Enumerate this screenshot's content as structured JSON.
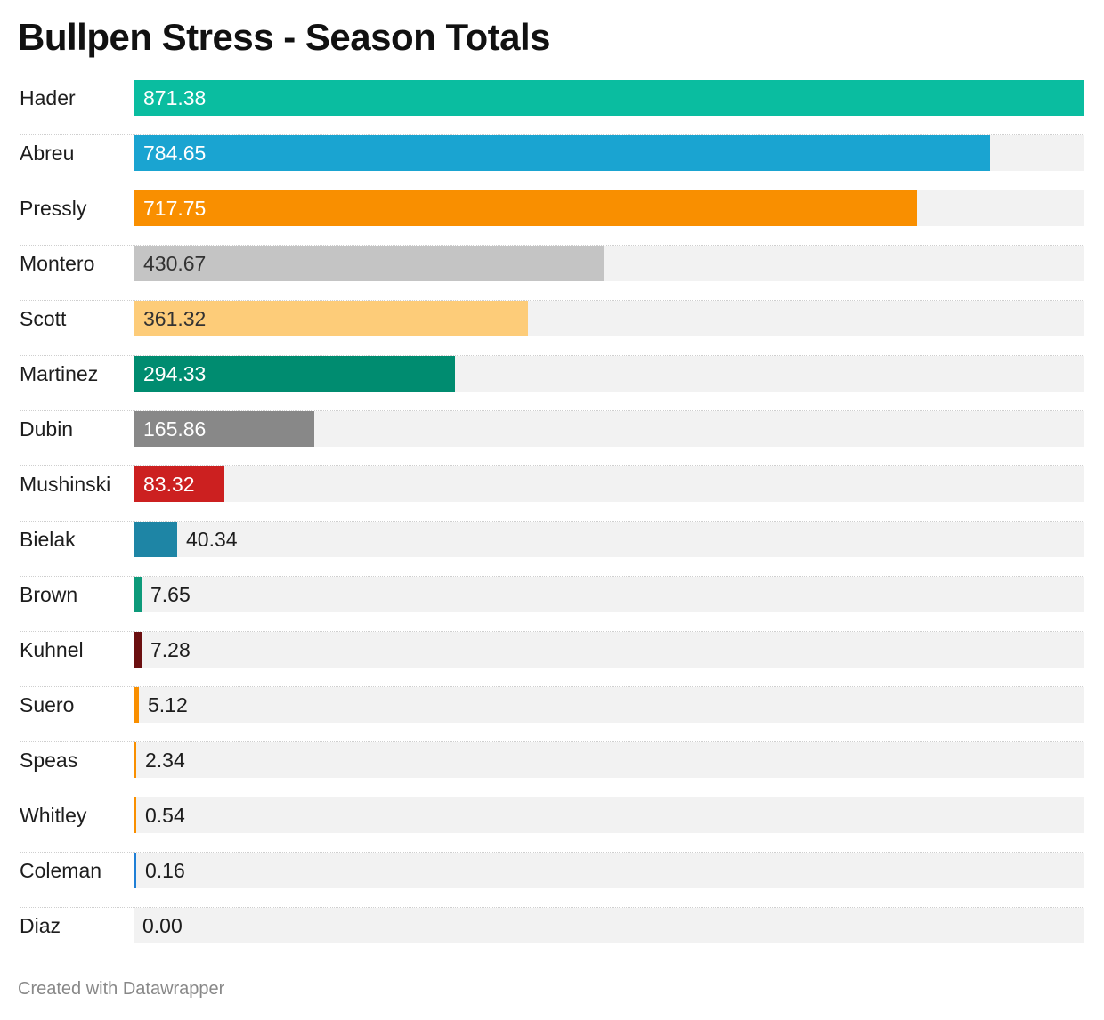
{
  "title": "Bullpen Stress - Season Totals",
  "footer": "Created with Datawrapper",
  "chart_data": {
    "type": "bar",
    "orientation": "horizontal",
    "title": "Bullpen Stress - Season Totals",
    "xlabel": "",
    "ylabel": "",
    "xlim": [
      0,
      871.38
    ],
    "grid": false,
    "legend": "none",
    "categories": [
      "Hader",
      "Abreu",
      "Pressly",
      "Montero",
      "Scott",
      "Martinez",
      "Dubin",
      "Mushinski",
      "Bielak",
      "Brown",
      "Kuhnel",
      "Suero",
      "Speas",
      "Whitley",
      "Coleman",
      "Diaz"
    ],
    "values": [
      871.38,
      784.65,
      717.75,
      430.67,
      361.32,
      294.33,
      165.86,
      83.32,
      40.34,
      7.65,
      7.28,
      5.12,
      2.34,
      0.54,
      0.16,
      0.0
    ],
    "value_labels": [
      "871.38",
      "784.65",
      "717.75",
      "430.67",
      "361.32",
      "294.33",
      "165.86",
      "83.32",
      "40.34",
      "7.65",
      "7.28",
      "5.12",
      "2.34",
      "0.54",
      "0.16",
      "0.00"
    ],
    "colors": [
      "#0abda0",
      "#1aa4d1",
      "#f98f00",
      "#c4c4c4",
      "#fdcc79",
      "#008c70",
      "#888888",
      "#cc2020",
      "#1e85a5",
      "#0d9a7a",
      "#6b0f10",
      "#f98f00",
      "#f98f00",
      "#f98f00",
      "#1f7fd6",
      "#f2f2f2"
    ],
    "label_colors": [
      "#ffffff",
      "#ffffff",
      "#ffffff",
      "#333333",
      "#333333",
      "#ffffff",
      "#ffffff",
      "#ffffff",
      "#1d1d1d",
      "#1d1d1d",
      "#1d1d1d",
      "#1d1d1d",
      "#1d1d1d",
      "#1d1d1d",
      "#1d1d1d",
      "#1d1d1d"
    ],
    "track_color": "#f2f2f2"
  }
}
